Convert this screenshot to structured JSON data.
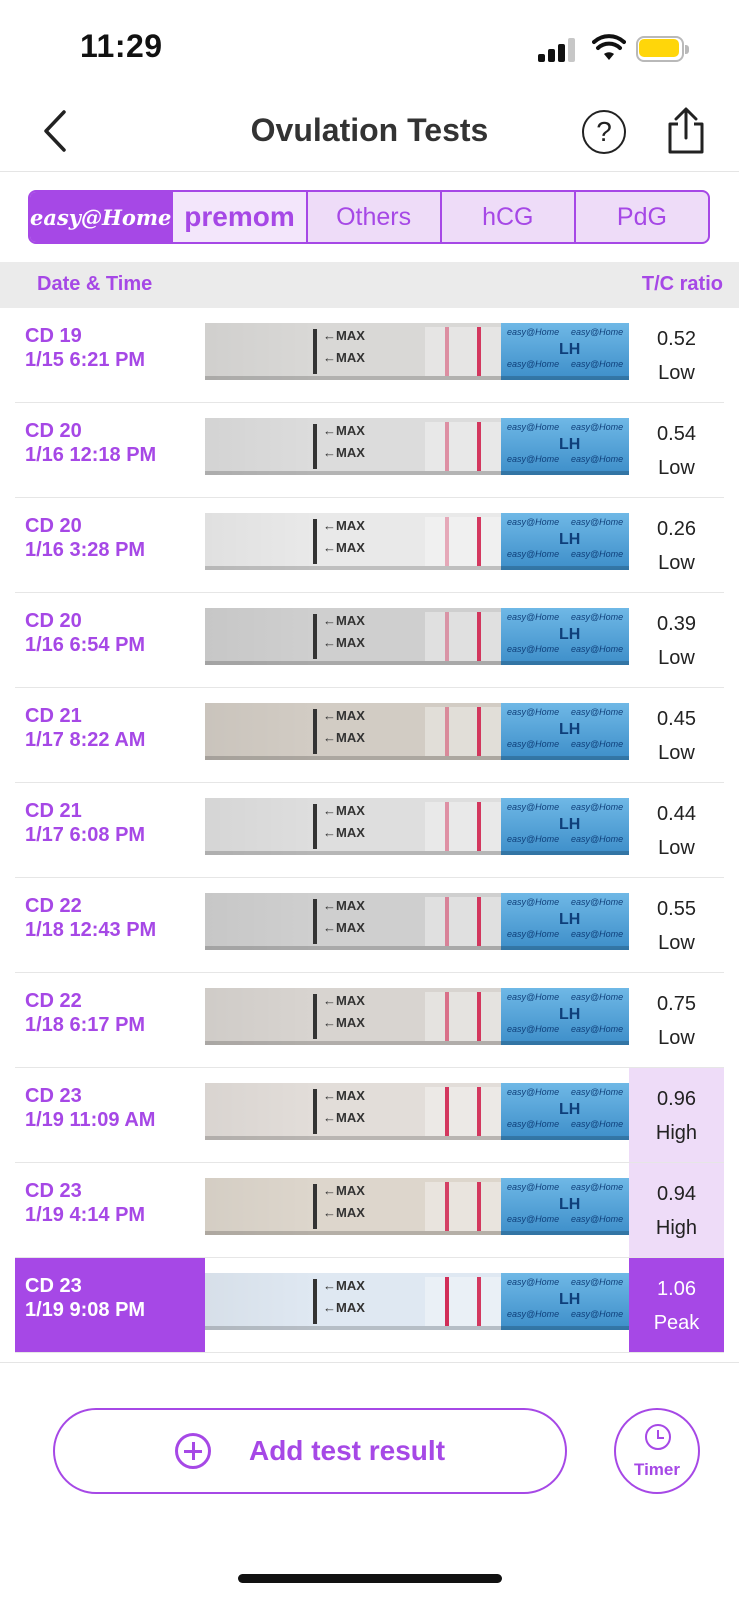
{
  "status": {
    "time": "11:29"
  },
  "header": {
    "title": "Ovulation Tests",
    "help_glyph": "?"
  },
  "brand_tabs": [
    {
      "label": "easy@Home",
      "selected": true
    },
    {
      "label": "premom",
      "selected": false
    },
    {
      "label": "Others",
      "selected": false
    },
    {
      "label": "hCG",
      "selected": false
    },
    {
      "label": "PdG",
      "selected": false
    }
  ],
  "columns": {
    "date": "Date & Time",
    "ratio": "T/C ratio"
  },
  "strip_text": {
    "max": "←MAX",
    "lh": "LH",
    "brand": "easy@Home"
  },
  "tests": [
    {
      "cd": "CD 19",
      "datetime": "1/15 6:21 PM",
      "ratio": "0.52",
      "level": "Low"
    },
    {
      "cd": "CD 20",
      "datetime": "1/16 12:18 PM",
      "ratio": "0.54",
      "level": "Low"
    },
    {
      "cd": "CD 20",
      "datetime": "1/16 3:28 PM",
      "ratio": "0.26",
      "level": "Low"
    },
    {
      "cd": "CD 20",
      "datetime": "1/16 6:54 PM",
      "ratio": "0.39",
      "level": "Low"
    },
    {
      "cd": "CD 21",
      "datetime": "1/17 8:22 AM",
      "ratio": "0.45",
      "level": "Low"
    },
    {
      "cd": "CD 21",
      "datetime": "1/17 6:08 PM",
      "ratio": "0.44",
      "level": "Low"
    },
    {
      "cd": "CD 22",
      "datetime": "1/18 12:43 PM",
      "ratio": "0.55",
      "level": "Low"
    },
    {
      "cd": "CD 22",
      "datetime": "1/18 6:17 PM",
      "ratio": "0.75",
      "level": "Low"
    },
    {
      "cd": "CD 23",
      "datetime": "1/19 11:09 AM",
      "ratio": "0.96",
      "level": "High"
    },
    {
      "cd": "CD 23",
      "datetime": "1/19 4:14 PM",
      "ratio": "0.94",
      "level": "High"
    },
    {
      "cd": "CD 23",
      "datetime": "1/19 9:08 PM",
      "ratio": "1.06",
      "level": "Peak"
    }
  ],
  "footer": {
    "add_label": "Add test result",
    "timer_label": "Timer"
  },
  "colors": {
    "accent": "#a648e6",
    "accent_light": "#eedcf8",
    "battery": "#ffd60a",
    "strip_lh_area": "#5aa7dc",
    "test_line": "#d0234f"
  },
  "icons": [
    "back-chevron-icon",
    "help-icon",
    "share-icon",
    "plus-circle-icon",
    "timer-icon"
  ]
}
